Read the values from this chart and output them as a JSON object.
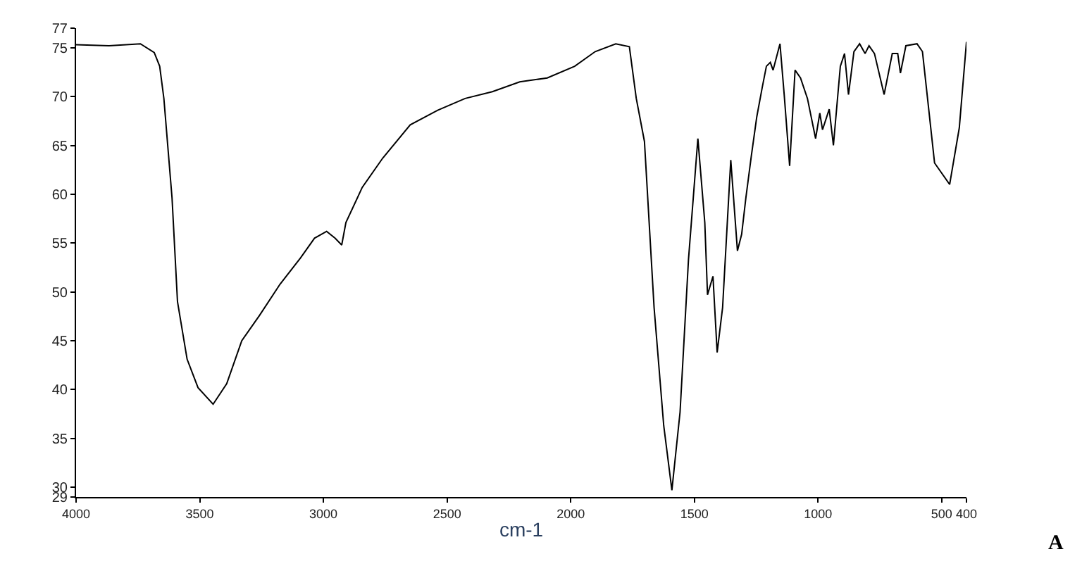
{
  "chart_data": {
    "type": "line",
    "xlabel": "cm-1",
    "annotations": [
      "A"
    ],
    "xlim": [
      4000,
      400
    ],
    "ylim": [
      29,
      77
    ],
    "xticks": [
      4000,
      3500,
      3000,
      2500,
      2000,
      1500,
      1000,
      500,
      400
    ],
    "yticks": [
      29,
      30,
      35,
      40,
      45,
      50,
      55,
      60,
      65,
      70,
      75,
      77
    ],
    "marker": "none",
    "line_style": "solid",
    "series": [
      {
        "color": "#000000",
        "x": [
          4000,
          3867,
          3740,
          3684,
          3662,
          3645,
          3612,
          3590,
          3551,
          3507,
          3446,
          3391,
          3330,
          3258,
          3175,
          3092,
          3036,
          2987,
          2953,
          2926,
          2909,
          2843,
          2760,
          2649,
          2538,
          2427,
          2317,
          2206,
          2095,
          1984,
          1901,
          1818,
          1763,
          1735,
          1702,
          1663,
          1624,
          1591,
          1558,
          1524,
          1486,
          1458,
          1447,
          1425,
          1408,
          1386,
          1353,
          1326,
          1309,
          1292,
          1270,
          1248,
          1226,
          1209,
          1193,
          1182,
          1154,
          1137,
          1115,
          1093,
          1071,
          1043,
          1010,
          993,
          982,
          955,
          938,
          910,
          893,
          877,
          855,
          832,
          810,
          794,
          772,
          733,
          700,
          678,
          667,
          645,
          600,
          578,
          529,
          468,
          429,
          400
        ],
        "values": [
          75.3,
          75.2,
          75.4,
          74.5,
          73.1,
          69.8,
          59.6,
          49,
          43.1,
          40.2,
          38.5,
          40.6,
          45,
          47.6,
          50.8,
          53.5,
          55.5,
          56.2,
          55.5,
          54.8,
          57.1,
          60.7,
          63.7,
          67.1,
          68.6,
          69.8,
          70.5,
          71.5,
          71.9,
          73.1,
          74.6,
          75.4,
          75.1,
          69.8,
          65.4,
          48.4,
          36.3,
          29.7,
          37.7,
          53.3,
          65.7,
          57.1,
          49.7,
          51.6,
          43.8,
          48.4,
          63.5,
          54.2,
          55.9,
          59.6,
          63.9,
          67.9,
          70.9,
          73.1,
          73.5,
          72.7,
          75.4,
          70.2,
          62.9,
          72.7,
          71.9,
          69.8,
          65.7,
          68.3,
          66.6,
          68.7,
          65,
          73.1,
          74.4,
          70.2,
          74.6,
          75.4,
          74.4,
          75.2,
          74.4,
          70.2,
          74.4,
          74.4,
          72.4,
          75.2,
          75.4,
          74.6,
          63.2,
          61,
          66.8,
          75.6
        ]
      }
    ]
  }
}
